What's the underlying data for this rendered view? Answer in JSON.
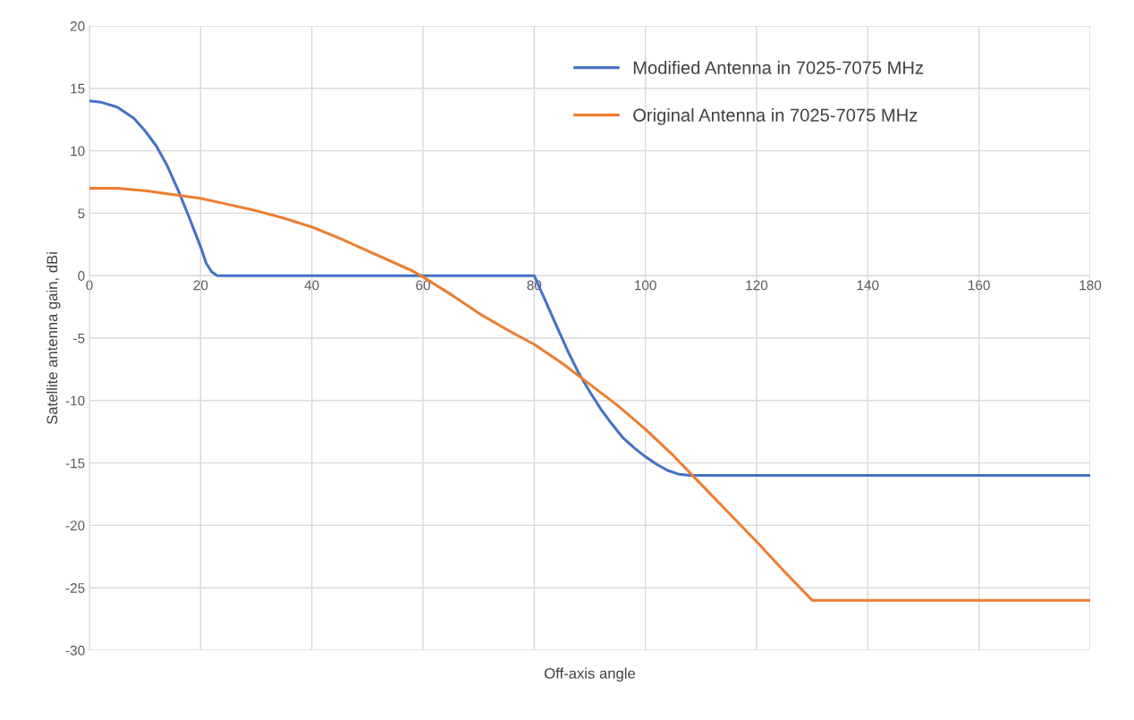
{
  "chart_data": {
    "type": "line",
    "xlabel": "Off-axis angle",
    "ylabel": "Satellite antenna gain, dBi",
    "xlim": [
      0,
      180
    ],
    "xticks": [
      0,
      20,
      40,
      60,
      80,
      100,
      120,
      140,
      160,
      180
    ],
    "ylim": [
      -30,
      20
    ],
    "yticks": [
      -30,
      -25,
      -20,
      -15,
      -10,
      -5,
      0,
      5,
      10,
      15,
      20
    ],
    "grid": true,
    "legend": "top right",
    "marker": "none",
    "line_style": "solid",
    "series": [
      {
        "name": "Modified Antenna in 7025-7075 MHz",
        "color": "#4472c4",
        "x": [
          0,
          2,
          5,
          8,
          10,
          12,
          14,
          16,
          18,
          20,
          21,
          22,
          23,
          80,
          82,
          84,
          86,
          88,
          90,
          92,
          94,
          96,
          98,
          100,
          102,
          104,
          106,
          108,
          180
        ],
        "values": [
          14,
          13.9,
          13.5,
          12.6,
          11.6,
          10.4,
          8.8,
          6.8,
          4.6,
          2.3,
          1,
          0.3,
          0,
          0,
          -2,
          -4,
          -6,
          -7.8,
          -9.3,
          -10.7,
          -11.9,
          -13,
          -13.8,
          -14.5,
          -15.1,
          -15.6,
          -15.9,
          -16,
          -16
        ]
      },
      {
        "name": "Original Antenna in 7025-7075 MHz",
        "color": "#ed7d31",
        "x": [
          0,
          5,
          10,
          15,
          20,
          25,
          30,
          35,
          40,
          45,
          50,
          55,
          58,
          60,
          65,
          70,
          75,
          80,
          85,
          90,
          95,
          100,
          105,
          110,
          115,
          120,
          125,
          130,
          180
        ],
        "values": [
          7,
          7,
          6.8,
          6.5,
          6.2,
          5.7,
          5.2,
          4.6,
          3.9,
          3,
          2,
          1,
          0.4,
          -0.1,
          -1.5,
          -3,
          -4.3,
          -5.5,
          -7,
          -8.7,
          -10.4,
          -12.3,
          -14.4,
          -16.7,
          -19,
          -21.3,
          -23.7,
          -26,
          -26
        ]
      }
    ]
  }
}
